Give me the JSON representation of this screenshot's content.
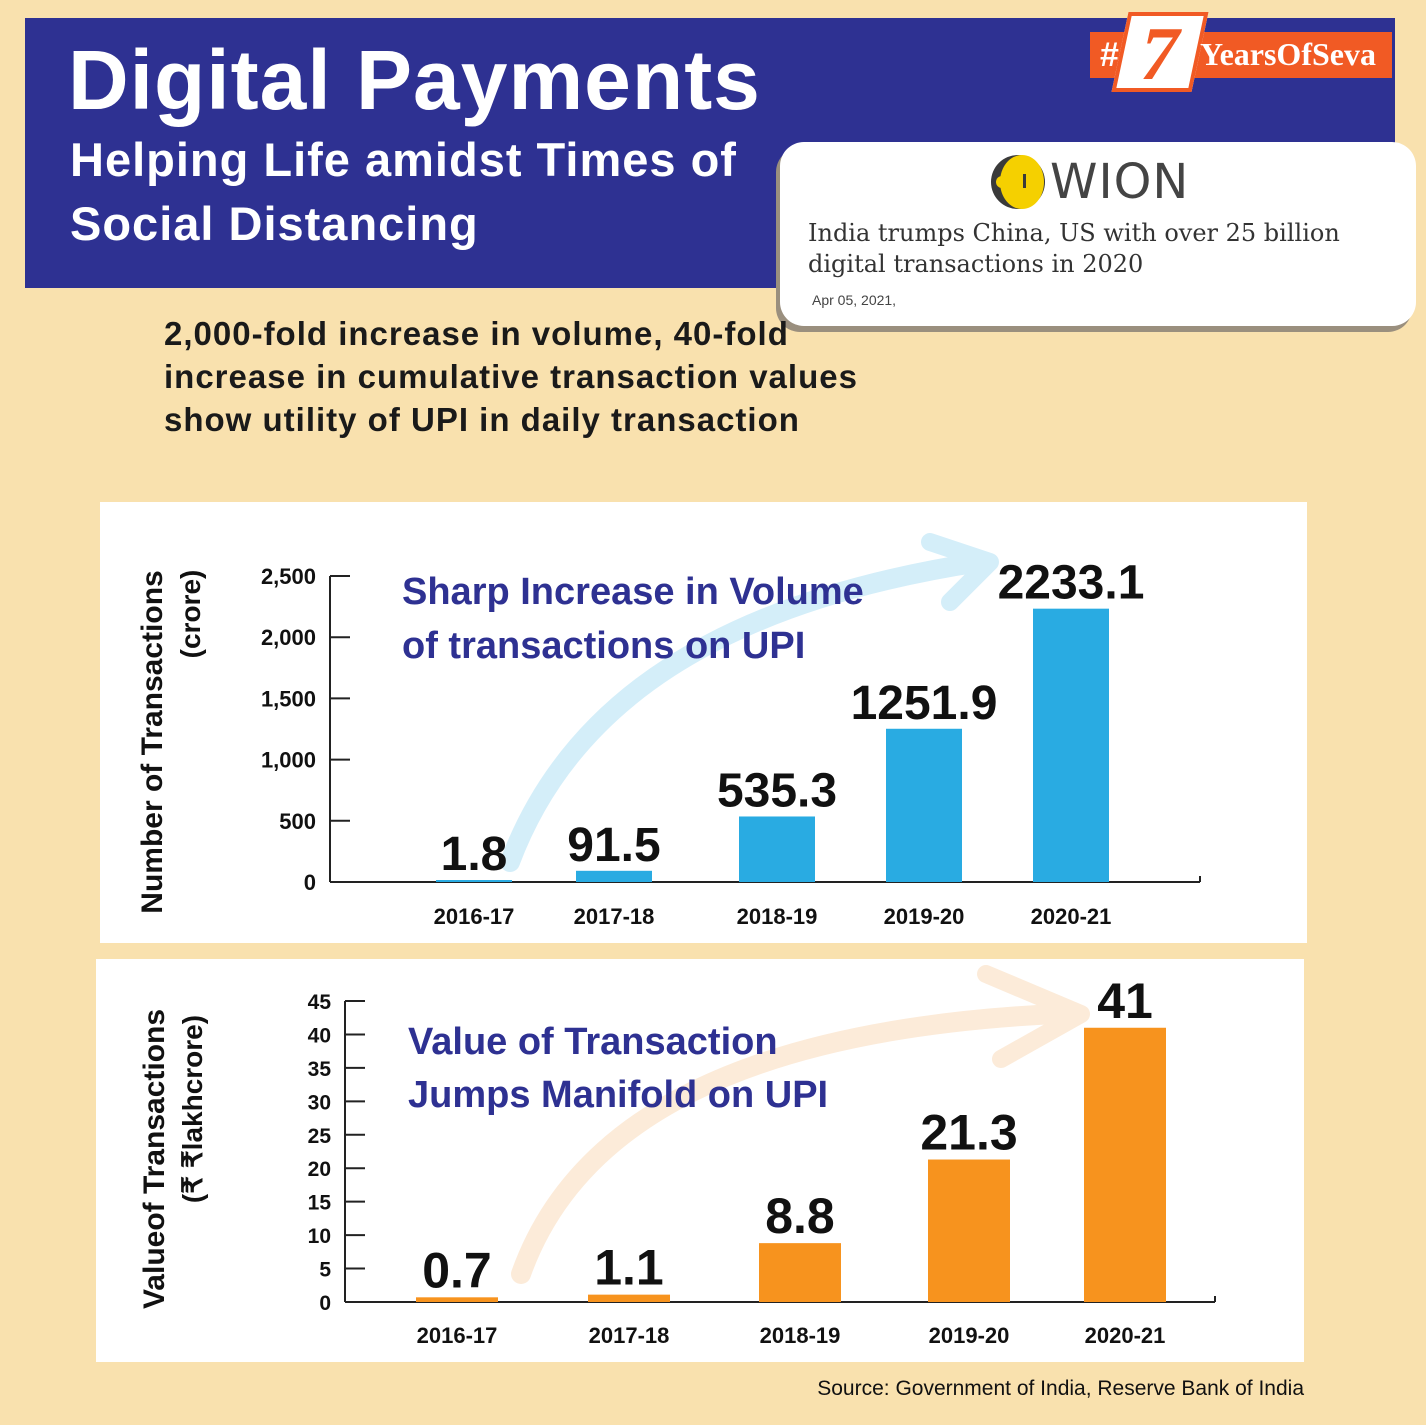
{
  "header": {
    "title": "Digital Payments",
    "subtitle": "Helping Life amidst Times of Social Distancing",
    "badge": {
      "hash": "#",
      "number": "7",
      "text": "YearsOfSeva"
    }
  },
  "news_card": {
    "logo_text": "WION",
    "headline": "India trumps China, US with over 25 billion digital transactions in 2020",
    "date": "Apr 05, 2021,"
  },
  "intro": "2,000-fold increase in volume, 40-fold increase in cumulative transaction values show utility of UPI in daily transaction",
  "colors": {
    "header": "#2e3192",
    "badge": "#f15a24",
    "volume_bar": "#29abe2",
    "value_bar": "#f7931e",
    "background": "#f9e1ae"
  },
  "chart_data": [
    {
      "type": "bar",
      "title": "Sharp Increase in Volume of transactions on UPI",
      "title_lines": [
        "Sharp Increase in Volume",
        "of transactions on UPI"
      ],
      "ylabel": "Number of Transactions",
      "ylabel_unit": "(crore)",
      "categories": [
        "2016-17",
        "2017-18",
        "2018-19",
        "2019-20",
        "2020-21"
      ],
      "values": [
        1.8,
        91.5,
        535.3,
        1251.9,
        2233.1
      ],
      "data_labels": [
        "1.8",
        "91.5",
        "535.3",
        "1251.9",
        "2233.1"
      ],
      "yticks": [
        0,
        500,
        1000,
        1500,
        2000,
        2500
      ],
      "ytick_labels": [
        "0",
        "500",
        "1,000",
        "1,500",
        "2,000",
        "2,500"
      ],
      "ylim": [
        0,
        2500
      ],
      "color": "#29abe2"
    },
    {
      "type": "bar",
      "title": "Value of Transaction Jumps Manifold on UPI",
      "title_lines": [
        "Value of Transaction",
        "Jumps Manifold on UPI"
      ],
      "ylabel": "Valueof Transactions",
      "ylabel_unit": "(₹ ₹lakhcrore)",
      "categories": [
        "2016-17",
        "2017-18",
        "2018-19",
        "2019-20",
        "2020-21"
      ],
      "values": [
        0.7,
        1.1,
        8.8,
        21.3,
        41
      ],
      "data_labels": [
        "0.7",
        "1.1",
        "8.8",
        "21.3",
        "41"
      ],
      "yticks": [
        0,
        5,
        10,
        15,
        20,
        25,
        30,
        35,
        40,
        45
      ],
      "ytick_labels": [
        "0",
        "5",
        "10",
        "15",
        "20",
        "25",
        "30",
        "35",
        "40",
        "45"
      ],
      "ylim": [
        0,
        45
      ],
      "color": "#f7931e"
    }
  ],
  "source": "Source: Government of India, Reserve Bank of India"
}
